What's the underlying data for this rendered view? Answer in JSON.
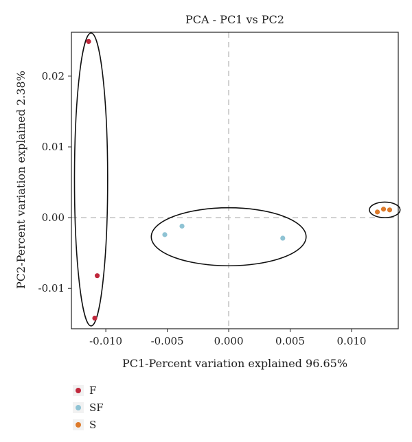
{
  "chart_data": {
    "type": "scatter",
    "title": "PCA - PC1 vs PC2",
    "xlabel": "PC1-Percent variation explained 96.65%",
    "ylabel": "PC2-Percent variation explained 2.38%",
    "xlim": [
      -0.0128,
      0.0138
    ],
    "ylim": [
      -0.0157,
      0.0262
    ],
    "xticks": [
      -0.01,
      -0.005,
      0.0,
      0.005,
      0.01
    ],
    "xtick_labels": [
      "-0.010",
      "-0.005",
      "0.000",
      "0.005",
      "0.010"
    ],
    "yticks": [
      -0.01,
      0.0,
      0.01,
      0.02
    ],
    "ytick_labels": [
      "-0.01",
      "0.00",
      "0.01",
      "0.02"
    ],
    "reference_lines": {
      "x": 0,
      "y": 0,
      "style": "dashed",
      "color": "#c0c0c0"
    },
    "legend_position": "bottom-left",
    "series": [
      {
        "name": "F",
        "color": "#c0283c",
        "points": [
          [
            -0.0114,
            0.0249
          ],
          [
            -0.0107,
            -0.0082
          ],
          [
            -0.0109,
            -0.0142
          ]
        ],
        "ellipse": {
          "cx": -0.0112,
          "cy": 0.0054,
          "rx": 0.00135,
          "ry": 0.0207
        }
      },
      {
        "name": "SF",
        "color": "#8fc3d4",
        "points": [
          [
            -0.0052,
            -0.0024
          ],
          [
            -0.0038,
            -0.0012
          ],
          [
            0.0044,
            -0.0029
          ]
        ],
        "ellipse": {
          "cx": 0.0,
          "cy": -0.0027,
          "rx": 0.0063,
          "ry": 0.0041
        }
      },
      {
        "name": "S",
        "color": "#dd7a2a",
        "points": [
          [
            0.0121,
            0.0008
          ],
          [
            0.0126,
            0.0012
          ],
          [
            0.0131,
            0.0011
          ]
        ],
        "ellipse": {
          "cx": 0.0127,
          "cy": 0.0011,
          "rx": 0.00125,
          "ry": 0.0011
        }
      }
    ]
  }
}
